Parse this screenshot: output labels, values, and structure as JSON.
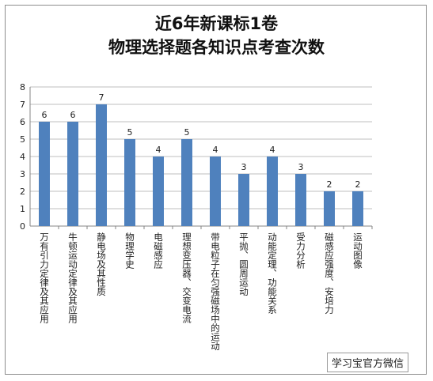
{
  "watermark": "学习宝官方微信",
  "chart_data": {
    "type": "bar",
    "title_lines": [
      "近6年新课标1卷",
      "物理选择题各知识点考查次数"
    ],
    "categories": [
      "万有引力定律及其应用",
      "牛顿运动定律及其应用",
      "静电场及其性质",
      "物理学史",
      "电磁感应",
      "理想变压器、交变电流",
      "带电粒子在匀强磁场中的运动",
      "平抛、圆周运动",
      "动能定理、功能关系",
      "受力分析",
      "磁感应强度、安培力",
      "运动图像"
    ],
    "values": [
      6,
      6,
      7,
      5,
      4,
      5,
      4,
      3,
      4,
      3,
      2,
      2
    ],
    "ylim": [
      0,
      8
    ],
    "yticks": [
      0,
      1,
      2,
      3,
      4,
      5,
      6,
      7,
      8
    ],
    "grid": true,
    "bar_color": "#4f81bd",
    "legend": "none",
    "data_labels": true
  }
}
